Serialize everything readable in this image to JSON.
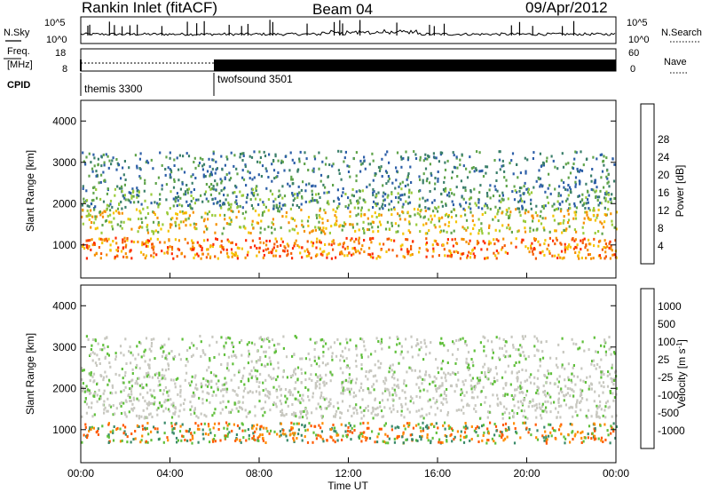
{
  "header": {
    "station": "Rankin Inlet (fitACF)",
    "beam": "Beam 04",
    "date": "09/Apr/2012"
  },
  "summary_labels": {
    "nsky": "N.Sky",
    "nsearch": "N.Search",
    "freq": "Freq.",
    "freq_unit": "[MHz]",
    "nave": "Nave",
    "cpid": "CPID",
    "noise_top": "10^5",
    "noise_bottom": "10^0",
    "noise_top_r": "10^5",
    "noise_bottom_r": "10^0",
    "freq_top": "18",
    "freq_bottom": "8",
    "nave_top": "60",
    "nave_bottom": "0"
  },
  "cpid_segments": [
    {
      "label": "themis 3300",
      "start": "00:00"
    },
    {
      "label": "twofsound 3501",
      "start": "06:00"
    }
  ],
  "chart_data": [
    {
      "type": "heatmap",
      "name": "power",
      "ylabel": "Slant Range [km]",
      "ylim": [
        200,
        4500
      ],
      "yticks": [
        "1000",
        "2000",
        "3000",
        "4000"
      ],
      "colorbar_label": "Power [dB]",
      "colorbar_ticks": [
        "4",
        "8",
        "12",
        "16",
        "20",
        "24",
        "28"
      ],
      "colorbar_colors": [
        "#1030ff",
        "#2d5fa8",
        "#3a7e6a",
        "#5fa34a",
        "#9acb3a",
        "#f5c400",
        "#f59000",
        "#f55a00",
        "#ff2a00"
      ],
      "xlim": [
        "00:00",
        "24:00"
      ]
    },
    {
      "type": "heatmap",
      "name": "velocity",
      "ylabel": "Slant Range [km]",
      "ylim": [
        200,
        4500
      ],
      "yticks": [
        "1000",
        "2000",
        "3000",
        "4000"
      ],
      "colorbar_label": "Velocity [m s",
      "colorbar_label_sup": "-1",
      "colorbar_label_end": "]",
      "colorbar_ticks": [
        "1000",
        "500",
        "100",
        "25",
        "-25",
        "-100",
        "-500",
        "-1000"
      ],
      "colorbar_colors": [
        "#1432c8",
        "#2d6aa8",
        "#3a8a6a",
        "#5fbf3a",
        "#c8c8c0",
        "#ffb040",
        "#ff8c00",
        "#ff5a00",
        "#ff1a00"
      ],
      "xlim": [
        "00:00",
        "24:00"
      ]
    }
  ],
  "xaxis": {
    "label": "Time UT",
    "ticks": [
      "00:00",
      "04:00",
      "08:00",
      "12:00",
      "16:00",
      "20:00",
      "00:00"
    ]
  }
}
